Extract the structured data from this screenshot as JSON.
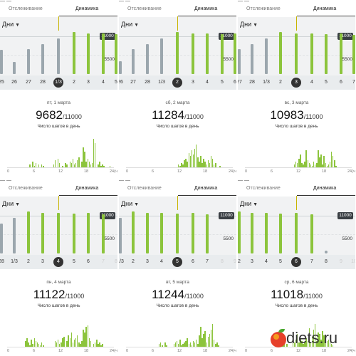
{
  "tabs": {
    "left": "Отслеживание",
    "right": "Динамика"
  },
  "filter": {
    "label": "Дни",
    "icon": "dropdown-arrow-icon"
  },
  "axis": {
    "goal_label": "11000",
    "mid_label": "5500"
  },
  "hist_ticks": [
    "0",
    "6",
    "12",
    "18",
    "24(ч)"
  ],
  "subtitle": "Число шагов в день",
  "goal_suffix": "/11000",
  "colors": {
    "green": "#8cc43c",
    "gray": "#9ba6ad",
    "dark": "#333333"
  },
  "watermark": {
    "text": "diets.ru",
    "icon": "apple-icon"
  },
  "panels": [
    {
      "top_text": "— —",
      "dates": [
        "25",
        "26",
        "27",
        "28",
        "1/3",
        "2",
        "3",
        "4",
        "5"
      ],
      "selected": 4,
      "caption": "пт, 1 марта",
      "steps": "9682",
      "bars": [
        {
          "value": 0.48,
          "color": "gray"
        },
        {
          "value": 0.24,
          "color": "gray"
        },
        {
          "value": 0.5,
          "color": "gray"
        },
        {
          "value": 0.6,
          "color": "gray"
        },
        {
          "value": 0.72,
          "color": "gray"
        },
        {
          "value": 0.84,
          "color": "green"
        },
        {
          "value": 0.82,
          "color": "green"
        },
        {
          "value": 0.82,
          "color": "green"
        },
        {
          "value": 0.8,
          "color": "green"
        }
      ],
      "hist": [
        0,
        0,
        0,
        0,
        0,
        0,
        0,
        0,
        0,
        0,
        0,
        0,
        0,
        0,
        0,
        2,
        0,
        4,
        1,
        3,
        0,
        2,
        0,
        2,
        1,
        0,
        0,
        0,
        0,
        0,
        0,
        2,
        5,
        0,
        6,
        3,
        0,
        1,
        0,
        3,
        2,
        0,
        4,
        3,
        6,
        2,
        3,
        5,
        7,
        0,
        4,
        14,
        11,
        4,
        6,
        4,
        2,
        3,
        20,
        17,
        0,
        2,
        4,
        1,
        2,
        1,
        0,
        0,
        0,
        1,
        0,
        0
      ]
    },
    {
      "top_text": "— —",
      "dates": [
        "26",
        "27",
        "28",
        "1/3",
        "2",
        "3",
        "4",
        "5",
        "6"
      ],
      "selected": 4,
      "caption": "сб, 2 марта",
      "steps": "11284",
      "bars": [
        {
          "value": 0.26,
          "color": "gray"
        },
        {
          "value": 0.5,
          "color": "gray"
        },
        {
          "value": 0.6,
          "color": "gray"
        },
        {
          "value": 0.72,
          "color": "gray"
        },
        {
          "value": 0.84,
          "color": "green"
        },
        {
          "value": 0.82,
          "color": "green"
        },
        {
          "value": 0.82,
          "color": "green"
        },
        {
          "value": 0.8,
          "color": "green"
        },
        {
          "value": 0.81,
          "color": "green"
        }
      ],
      "hist": [
        0,
        0,
        0,
        0,
        0,
        0,
        0,
        0,
        0,
        0,
        0,
        0,
        0,
        0,
        0,
        0,
        0,
        0,
        0,
        0,
        0,
        0,
        0,
        0,
        0,
        0,
        0,
        0,
        0,
        0,
        0,
        0,
        0,
        0,
        0,
        2,
        1,
        3,
        2,
        5,
        6,
        4,
        10,
        8,
        12,
        9,
        13,
        16,
        7,
        4,
        8,
        3,
        6,
        4,
        2,
        5,
        3,
        8,
        6,
        2,
        3,
        0,
        0,
        1,
        0,
        0,
        0,
        0,
        0,
        0,
        0,
        0
      ]
    },
    {
      "top_text": "— —",
      "dates": [
        "27",
        "28",
        "1/3",
        "2",
        "3",
        "4",
        "5",
        "6",
        "7"
      ],
      "selected": 4,
      "caption": "вс, 3 марта",
      "steps": "10983",
      "bars": [
        {
          "value": 0.5,
          "color": "gray"
        },
        {
          "value": 0.6,
          "color": "gray"
        },
        {
          "value": 0.72,
          "color": "gray"
        },
        {
          "value": 0.84,
          "color": "green"
        },
        {
          "value": 0.82,
          "color": "green"
        },
        {
          "value": 0.82,
          "color": "green"
        },
        {
          "value": 0.8,
          "color": "green"
        },
        {
          "value": 0.81,
          "color": "green"
        },
        {
          "value": 0.78,
          "color": "green"
        }
      ],
      "hist": [
        0,
        0,
        0,
        0,
        0,
        0,
        0,
        0,
        0,
        0,
        0,
        0,
        0,
        0,
        0,
        0,
        0,
        0,
        0,
        0,
        0,
        0,
        0,
        0,
        0,
        0,
        0,
        0,
        0,
        0,
        0,
        0,
        0,
        2,
        4,
        3,
        6,
        9,
        3,
        2,
        4,
        12,
        5,
        3,
        2,
        1,
        4,
        2,
        3,
        12,
        7,
        9,
        2,
        8,
        3,
        1,
        2,
        4,
        11,
        8,
        5,
        1,
        0,
        0,
        0,
        0,
        0,
        0,
        0,
        0,
        0,
        0
      ]
    },
    {
      "top_text": "— —",
      "dates": [
        "28",
        "1/3",
        "2",
        "3",
        "4",
        "5",
        "6",
        "7",
        "8"
      ],
      "selected": 4,
      "caption": "пн, 4 марта",
      "steps": "11122",
      "bars": [
        {
          "value": 0.6,
          "color": "gray"
        },
        {
          "value": 0.72,
          "color": "gray"
        },
        {
          "value": 0.84,
          "color": "green"
        },
        {
          "value": 0.82,
          "color": "green"
        },
        {
          "value": 0.82,
          "color": "green"
        },
        {
          "value": 0.8,
          "color": "green"
        },
        {
          "value": 0.81,
          "color": "green"
        },
        {
          "value": 0.78,
          "color": "green"
        },
        {
          "value": 0.0,
          "color": "none"
        }
      ],
      "hist": [
        0,
        0,
        0,
        0,
        0,
        0,
        0,
        0,
        0,
        0,
        0,
        0,
        4,
        6,
        3,
        1,
        5,
        2,
        6,
        4,
        3,
        2,
        1,
        3,
        1,
        0,
        0,
        0,
        0,
        0,
        0,
        0,
        4,
        3,
        5,
        2,
        3,
        6,
        7,
        0,
        4,
        8,
        6,
        10,
        3,
        5,
        6,
        8,
        3,
        2,
        4,
        12,
        10,
        14,
        15,
        6,
        4,
        0,
        2,
        3,
        5,
        2,
        3,
        1,
        2,
        0,
        0,
        0,
        0,
        0,
        0,
        0
      ]
    },
    {
      "top_text": "— —",
      "dates": [
        "1/3",
        "2",
        "3",
        "4",
        "5",
        "6",
        "7",
        "8",
        "9"
      ],
      "selected": 4,
      "caption": "вт, 5 марта",
      "steps": "11244",
      "bars": [
        {
          "value": 0.72,
          "color": "gray"
        },
        {
          "value": 0.84,
          "color": "green"
        },
        {
          "value": 0.82,
          "color": "green"
        },
        {
          "value": 0.82,
          "color": "green"
        },
        {
          "value": 0.8,
          "color": "green"
        },
        {
          "value": 0.81,
          "color": "green"
        },
        {
          "value": 0.78,
          "color": "green"
        },
        {
          "value": 0.0,
          "color": "none"
        },
        {
          "value": 0.0,
          "color": "none"
        }
      ],
      "hist": [
        0,
        0,
        0,
        0,
        0,
        0,
        0,
        0,
        0,
        0,
        0,
        0,
        0,
        0,
        0,
        0,
        0,
        0,
        0,
        0,
        0,
        0,
        2,
        3,
        1,
        0,
        3,
        1,
        0,
        0,
        0,
        0,
        2,
        3,
        4,
        2,
        5,
        1,
        2,
        3,
        4,
        6,
        2,
        3,
        1,
        4,
        3,
        5,
        2,
        8,
        14,
        6,
        9,
        11,
        3,
        7,
        9,
        12,
        16,
        5,
        2,
        3,
        1,
        0,
        0,
        0,
        0,
        0,
        0,
        0,
        0,
        0
      ]
    },
    {
      "top_text": "— —",
      "dates": [
        "2",
        "3",
        "4",
        "5",
        "6",
        "7",
        "8",
        "9",
        "10"
      ],
      "selected": 4,
      "caption": "ср, 6 марта",
      "steps": "11018",
      "bars": [
        {
          "value": 0.84,
          "color": "green"
        },
        {
          "value": 0.82,
          "color": "green"
        },
        {
          "value": 0.82,
          "color": "green"
        },
        {
          "value": 0.8,
          "color": "green"
        },
        {
          "value": 0.81,
          "color": "green"
        },
        {
          "value": 0.78,
          "color": "green"
        },
        {
          "value": 0.0,
          "color": "none"
        },
        {
          "value": 0.0,
          "color": "none"
        },
        {
          "value": 0.0,
          "color": "none"
        }
      ],
      "hist": [
        0,
        0,
        0,
        0,
        0,
        0,
        0,
        0,
        0,
        0,
        0,
        0,
        0,
        0,
        0,
        0,
        0,
        0,
        0,
        0,
        0,
        0,
        0,
        3,
        4,
        2,
        3,
        0,
        2,
        0,
        0,
        0,
        4,
        3,
        5,
        9,
        3,
        6,
        4,
        2,
        3,
        6,
        4,
        13,
        3,
        7,
        12,
        16,
        4,
        10,
        9,
        5,
        11,
        8,
        7,
        4,
        5,
        3,
        2,
        1,
        0,
        0,
        0,
        0,
        0,
        0,
        0,
        0,
        0,
        0,
        0,
        0
      ]
    }
  ]
}
